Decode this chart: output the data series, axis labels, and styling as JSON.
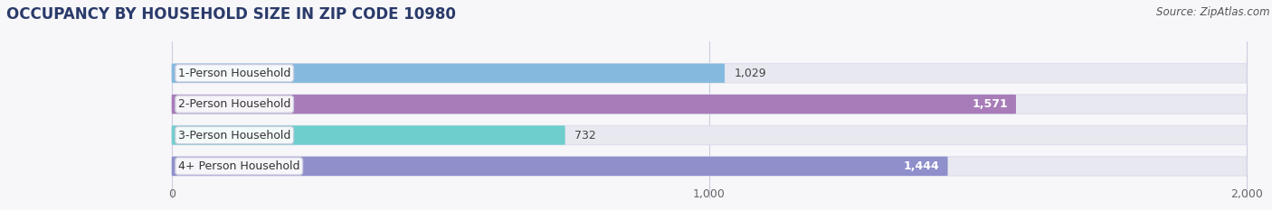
{
  "title": "OCCUPANCY BY HOUSEHOLD SIZE IN ZIP CODE 10980",
  "source": "Source: ZipAtlas.com",
  "categories": [
    "1-Person Household",
    "2-Person Household",
    "3-Person Household",
    "4+ Person Household"
  ],
  "values": [
    1029,
    1571,
    732,
    1444
  ],
  "bar_colors": [
    "#85bade",
    "#a87cb8",
    "#6ecece",
    "#8f8fcc"
  ],
  "bar_labels": [
    "1,029",
    "1,571",
    "732",
    "1,444"
  ],
  "label_inside": [
    false,
    true,
    false,
    true
  ],
  "xlim": [
    0,
    2000
  ],
  "xstart": 0,
  "xticks": [
    0,
    1000,
    2000
  ],
  "xtick_labels": [
    "0",
    "1,000",
    "2,000"
  ],
  "background_color": "#f7f7fa",
  "bar_bg_color": "#e8e8f0",
  "title_fontsize": 12,
  "source_fontsize": 8.5,
  "label_fontsize": 9,
  "cat_fontsize": 9,
  "tick_fontsize": 9,
  "bar_height": 0.62,
  "figsize": [
    14.06,
    2.33
  ],
  "dpi": 100
}
